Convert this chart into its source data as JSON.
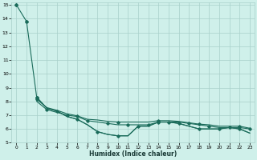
{
  "xlabel": "Humidex (Indice chaleur)",
  "background_color": "#cff0ea",
  "grid_color": "#a8d0ca",
  "line_color": "#1a6b5a",
  "xlim": [
    -0.5,
    23.5
  ],
  "ylim": [
    5,
    15.2
  ],
  "yticks": [
    5,
    6,
    7,
    8,
    9,
    10,
    11,
    12,
    13,
    14,
    15
  ],
  "xticks": [
    0,
    1,
    2,
    3,
    4,
    5,
    6,
    7,
    8,
    9,
    10,
    11,
    12,
    13,
    14,
    15,
    16,
    17,
    18,
    19,
    20,
    21,
    22,
    23
  ],
  "line1_x": [
    0,
    1,
    2,
    3,
    4,
    5,
    6,
    7,
    8,
    9,
    10,
    11,
    12,
    13,
    14,
    15,
    16,
    17,
    18,
    19,
    20,
    21,
    22,
    23
  ],
  "line1_y": [
    15.0,
    13.8,
    8.3,
    7.5,
    7.3,
    6.9,
    6.7,
    6.3,
    5.8,
    5.6,
    5.5,
    5.5,
    6.2,
    6.2,
    6.5,
    6.5,
    6.4,
    6.2,
    6.0,
    6.0,
    6.0,
    6.1,
    6.0,
    5.7
  ],
  "line1_markers": [
    0,
    1,
    2
  ],
  "line2_x": [
    2,
    3,
    4,
    5,
    6,
    7,
    8,
    9,
    10,
    11,
    12,
    13,
    14,
    15,
    16,
    17,
    18,
    19,
    20,
    21,
    22,
    23
  ],
  "line2_y": [
    8.3,
    7.5,
    7.3,
    6.9,
    6.7,
    6.3,
    5.8,
    5.6,
    5.5,
    5.5,
    6.2,
    6.2,
    6.5,
    6.5,
    6.4,
    6.2,
    6.0,
    6.0,
    6.0,
    6.1,
    6.0,
    5.7
  ],
  "line2_markers": [
    0,
    2,
    4,
    6,
    8,
    10,
    12,
    14,
    16,
    18,
    20
  ],
  "line3_x": [
    2,
    3,
    4,
    5,
    6,
    7,
    8,
    9,
    10,
    11,
    12,
    13,
    14,
    15,
    16,
    17,
    18,
    19,
    20,
    21,
    22,
    23
  ],
  "line3_y": [
    8.0,
    7.4,
    7.2,
    7.0,
    6.9,
    6.6,
    6.5,
    6.4,
    6.3,
    6.3,
    6.3,
    6.3,
    6.5,
    6.5,
    6.5,
    6.4,
    6.3,
    6.2,
    6.1,
    6.1,
    6.1,
    6.0
  ],
  "line3_markers": [
    1,
    3,
    5,
    7,
    9,
    11,
    13,
    15,
    17,
    19,
    21
  ],
  "line4_x": [
    2,
    3,
    4,
    5,
    6,
    7,
    8,
    9,
    10,
    11,
    12,
    13,
    14,
    15,
    16,
    17,
    18,
    19,
    20,
    21,
    22,
    23
  ],
  "line4_y": [
    8.15,
    7.55,
    7.35,
    7.1,
    6.95,
    6.7,
    6.65,
    6.55,
    6.5,
    6.5,
    6.5,
    6.5,
    6.6,
    6.6,
    6.55,
    6.45,
    6.35,
    6.3,
    6.2,
    6.2,
    6.2,
    6.05
  ],
  "line4_markers": [
    0,
    4,
    8,
    12,
    16,
    20
  ]
}
